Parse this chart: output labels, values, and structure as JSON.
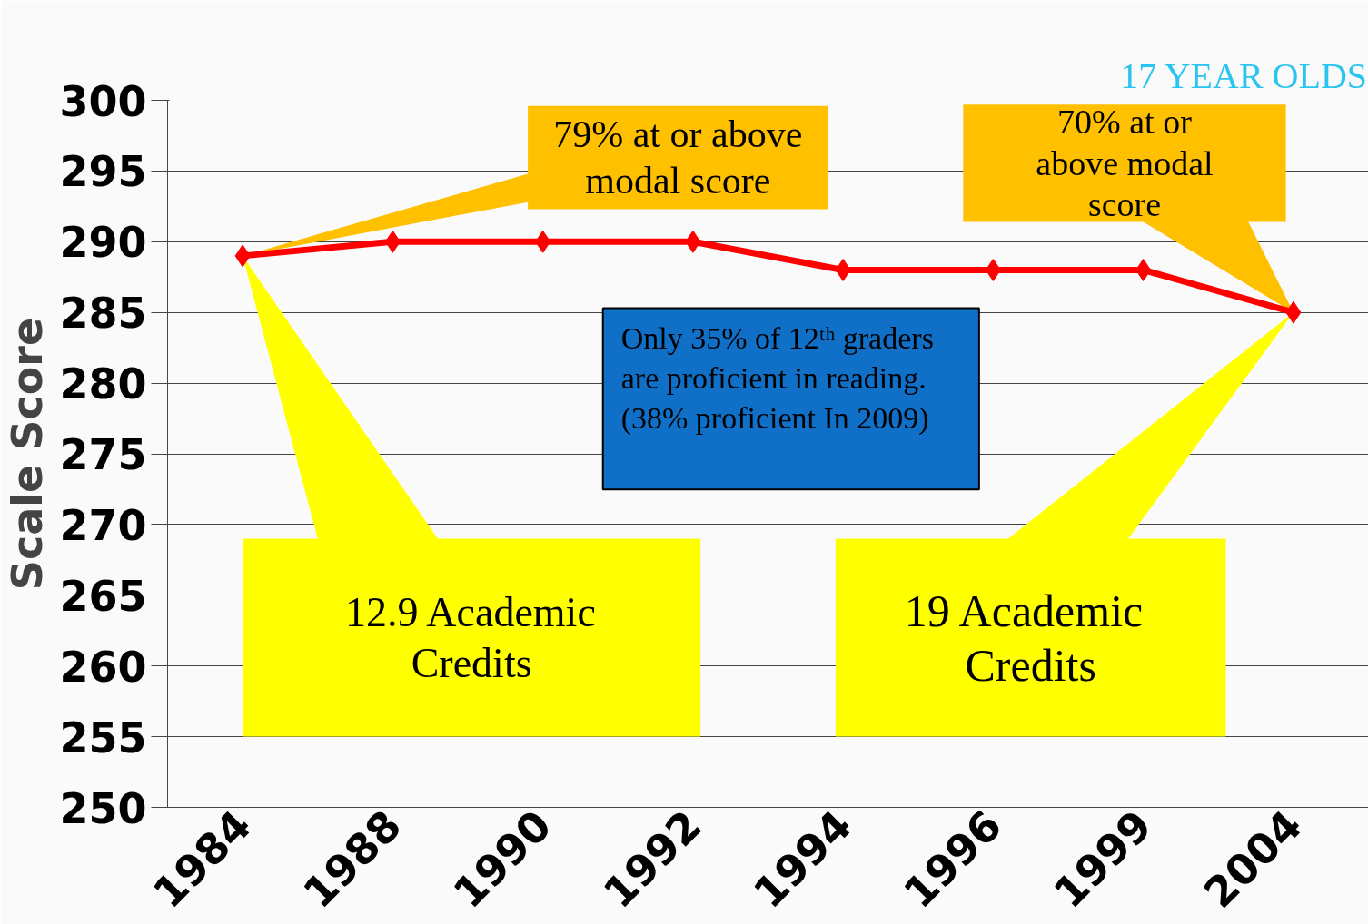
{
  "chart_data": {
    "type": "line",
    "title": "17 YEAR OLDS",
    "ylabel": "Scale Score",
    "categories": [
      "1984",
      "1988",
      "1990",
      "1992",
      "1994",
      "1996",
      "1999",
      "2004"
    ],
    "series": [
      {
        "color": "#ff0000",
        "values": [
          289,
          290,
          290,
          290,
          288,
          288,
          288,
          285
        ]
      }
    ],
    "ylim": [
      250,
      300
    ],
    "yticks": [
      250,
      255,
      260,
      265,
      270,
      275,
      280,
      285,
      290,
      295,
      300
    ],
    "grid": "y",
    "marker": "diamond",
    "line_style": "solid",
    "annotations": [
      "79% at or above modal score",
      "70% at or above modal score",
      "12.9 Academic Credits",
      "19  Academic Credits",
      "Only 35% of 12ᵗʰ graders are proficient in reading. (38% proficient In 2009)"
    ]
  }
}
